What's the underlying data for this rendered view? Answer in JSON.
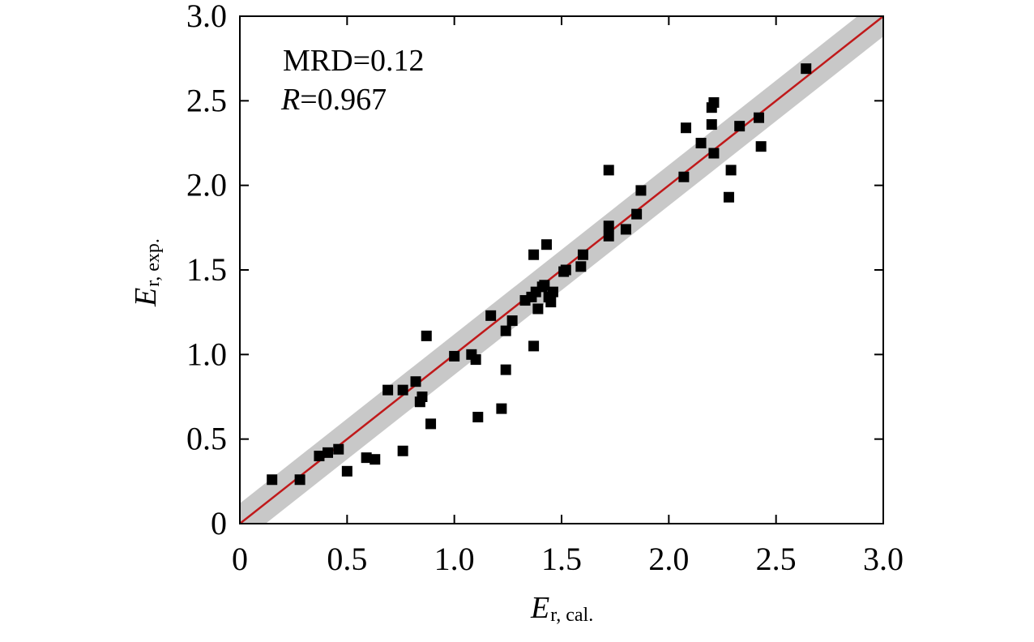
{
  "chart_data": {
    "type": "scatter",
    "xlabel": {
      "main": "E",
      "sub": "r, cal."
    },
    "ylabel": {
      "main": "E",
      "sub": "r, exp."
    },
    "xlim": [
      0,
      3.0
    ],
    "ylim": [
      0,
      3.0
    ],
    "x_ticks": [
      0,
      0.5,
      1.0,
      1.5,
      2.0,
      2.5,
      3.0
    ],
    "y_ticks": [
      0,
      0.5,
      1.0,
      1.5,
      2.0,
      2.5,
      3.0
    ],
    "x_tick_labels": [
      "0",
      "0.5",
      "1.0",
      "1.5",
      "2.0",
      "2.5",
      "3.0"
    ],
    "y_tick_labels": [
      "0",
      "0.5",
      "1.0",
      "1.5",
      "2.0",
      "2.5",
      "3.0"
    ],
    "annotations": {
      "mrd": "MRD=0.12",
      "r_label": "R",
      "r_value": "=0.967"
    },
    "grid": false,
    "reference_line": {
      "from": [
        0,
        0
      ],
      "to": [
        3.0,
        3.0
      ],
      "color": "#c0191a"
    },
    "confidence_band": {
      "half_width": 0.12,
      "color": "#c8c8c8"
    },
    "marker_color": "#000000",
    "points": [
      {
        "x": 0.15,
        "y": 0.26
      },
      {
        "x": 0.28,
        "y": 0.26
      },
      {
        "x": 0.37,
        "y": 0.4
      },
      {
        "x": 0.41,
        "y": 0.42
      },
      {
        "x": 0.46,
        "y": 0.44
      },
      {
        "x": 0.5,
        "y": 0.31
      },
      {
        "x": 0.59,
        "y": 0.39
      },
      {
        "x": 0.63,
        "y": 0.38
      },
      {
        "x": 0.69,
        "y": 0.79
      },
      {
        "x": 0.76,
        "y": 0.79
      },
      {
        "x": 0.76,
        "y": 0.43
      },
      {
        "x": 0.82,
        "y": 0.84
      },
      {
        "x": 0.84,
        "y": 0.72
      },
      {
        "x": 0.85,
        "y": 0.75
      },
      {
        "x": 0.87,
        "y": 1.11
      },
      {
        "x": 0.89,
        "y": 0.59
      },
      {
        "x": 1.0,
        "y": 0.99
      },
      {
        "x": 1.08,
        "y": 1.0
      },
      {
        "x": 1.1,
        "y": 0.97
      },
      {
        "x": 1.11,
        "y": 0.63
      },
      {
        "x": 1.17,
        "y": 1.23
      },
      {
        "x": 1.22,
        "y": 0.68
      },
      {
        "x": 1.24,
        "y": 1.14
      },
      {
        "x": 1.24,
        "y": 0.91
      },
      {
        "x": 1.27,
        "y": 1.2
      },
      {
        "x": 1.33,
        "y": 1.32
      },
      {
        "x": 1.36,
        "y": 1.34
      },
      {
        "x": 1.37,
        "y": 1.59
      },
      {
        "x": 1.37,
        "y": 1.05
      },
      {
        "x": 1.38,
        "y": 1.37
      },
      {
        "x": 1.39,
        "y": 1.27
      },
      {
        "x": 1.41,
        "y": 1.4
      },
      {
        "x": 1.42,
        "y": 1.41
      },
      {
        "x": 1.43,
        "y": 1.65
      },
      {
        "x": 1.44,
        "y": 1.34
      },
      {
        "x": 1.45,
        "y": 1.31
      },
      {
        "x": 1.46,
        "y": 1.37
      },
      {
        "x": 1.51,
        "y": 1.49
      },
      {
        "x": 1.52,
        "y": 1.5
      },
      {
        "x": 1.59,
        "y": 1.52
      },
      {
        "x": 1.6,
        "y": 1.59
      },
      {
        "x": 1.72,
        "y": 2.09
      },
      {
        "x": 1.72,
        "y": 1.7
      },
      {
        "x": 1.72,
        "y": 1.76
      },
      {
        "x": 1.8,
        "y": 1.74
      },
      {
        "x": 1.85,
        "y": 1.83
      },
      {
        "x": 1.87,
        "y": 1.97
      },
      {
        "x": 2.07,
        "y": 2.05
      },
      {
        "x": 2.08,
        "y": 2.34
      },
      {
        "x": 2.15,
        "y": 2.25
      },
      {
        "x": 2.2,
        "y": 2.36
      },
      {
        "x": 2.2,
        "y": 2.46
      },
      {
        "x": 2.21,
        "y": 2.19
      },
      {
        "x": 2.21,
        "y": 2.49
      },
      {
        "x": 2.28,
        "y": 1.93
      },
      {
        "x": 2.29,
        "y": 2.09
      },
      {
        "x": 2.33,
        "y": 2.35
      },
      {
        "x": 2.42,
        "y": 2.4
      },
      {
        "x": 2.43,
        "y": 2.23
      },
      {
        "x": 2.64,
        "y": 2.69
      }
    ]
  }
}
